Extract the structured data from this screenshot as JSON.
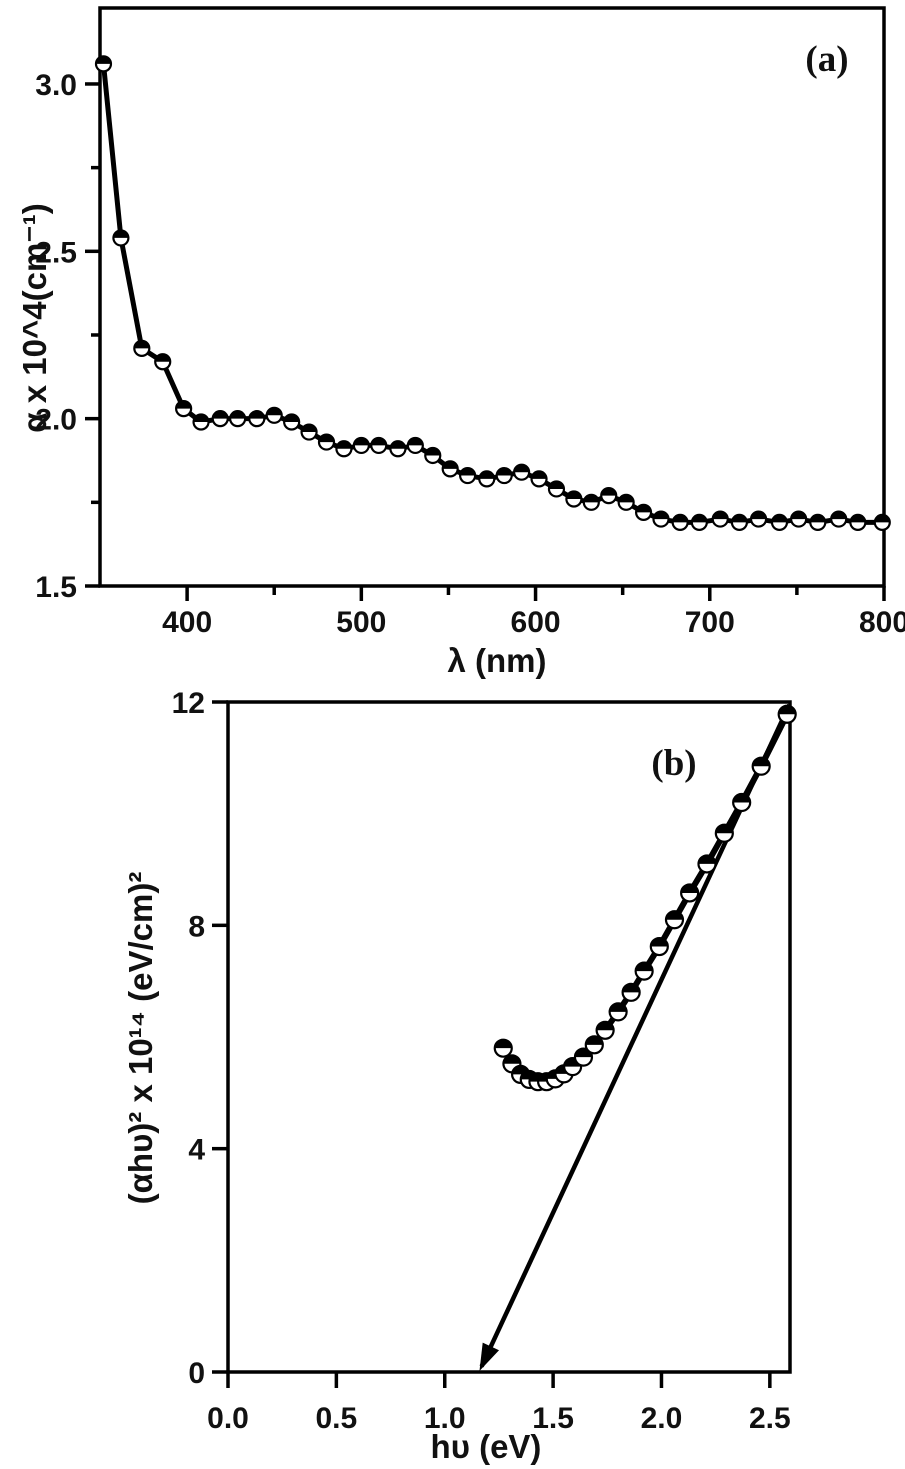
{
  "figure": {
    "background": "#ffffff",
    "colors": {
      "line": "#000000",
      "marker_fill": "#ffffff",
      "text": "#111111"
    },
    "marker_style": "half-filled-circle-top-black"
  },
  "chart_data": [
    {
      "type": "line",
      "name": "absorption-spectrum",
      "panel_label": "(a)",
      "xlabel": "λ (nm)",
      "ylabel": "α x 10^4(cm⁻¹)",
      "xlim": [
        350,
        800
      ],
      "ylim": [
        1.5,
        3.227
      ],
      "xticks": [
        400,
        500,
        600,
        700,
        800
      ],
      "xtick_labels": [
        "400",
        "500",
        "600",
        "700",
        "800"
      ],
      "xticks_minor": [
        450,
        550,
        650,
        750
      ],
      "yticks": [
        1.5,
        2.0,
        2.5,
        3.0
      ],
      "ytick_labels": [
        "1.5",
        "2.0",
        "2.5",
        "3.0"
      ],
      "yticks_minor": [
        1.75,
        2.25,
        2.75
      ],
      "grid": false,
      "legend": "none",
      "series": [
        {
          "name": "alpha-vs-wavelength",
          "marker": "half-filled-circle",
          "x": [
            352,
            362,
            374,
            386,
            398,
            408,
            419,
            429,
            440,
            450,
            460,
            470,
            480,
            490,
            500,
            510,
            521,
            531,
            541,
            551,
            561,
            572,
            582,
            592,
            602,
            612,
            622,
            632,
            642,
            652,
            662,
            672,
            683,
            694,
            706,
            717,
            728,
            740,
            751,
            762,
            774,
            785,
            799
          ],
          "y": [
            3.06,
            2.54,
            2.21,
            2.17,
            2.03,
            1.99,
            2.0,
            2.0,
            2.0,
            2.01,
            1.99,
            1.96,
            1.93,
            1.91,
            1.92,
            1.92,
            1.91,
            1.92,
            1.89,
            1.85,
            1.83,
            1.82,
            1.83,
            1.84,
            1.82,
            1.79,
            1.76,
            1.75,
            1.77,
            1.75,
            1.72,
            1.7,
            1.69,
            1.69,
            1.7,
            1.69,
            1.7,
            1.69,
            1.7,
            1.69,
            1.7,
            1.69,
            1.69
          ]
        }
      ]
    },
    {
      "type": "line",
      "name": "tauc-plot",
      "panel_label": "(b)",
      "xlabel": "hυ (eV)",
      "ylabel": "(αhυ)² x 10¹⁴ (eV/cm)²",
      "xlim": [
        0,
        2.593
      ],
      "ylim": [
        0,
        12
      ],
      "xticks": [
        0.0,
        0.5,
        1.0,
        1.5,
        2.0,
        2.5
      ],
      "xtick_labels": [
        "0.0",
        "0.5",
        "1.0",
        "1.5",
        "2.0",
        "2.5"
      ],
      "xticks_minor": [],
      "yticks": [
        0,
        4,
        8,
        12
      ],
      "ytick_labels": [
        "0",
        "4",
        "8",
        "12"
      ],
      "yticks_minor": [],
      "grid": false,
      "legend": "none",
      "series": [
        {
          "name": "alpha-hv-squared",
          "marker": "half-filled-circle",
          "x": [
            1.27,
            1.31,
            1.35,
            1.39,
            1.43,
            1.47,
            1.51,
            1.55,
            1.59,
            1.64,
            1.69,
            1.74,
            1.8,
            1.86,
            1.92,
            1.99,
            2.06,
            2.13,
            2.21,
            2.29,
            2.37,
            2.46,
            2.58
          ],
          "y": [
            5.8,
            5.52,
            5.33,
            5.24,
            5.2,
            5.2,
            5.25,
            5.34,
            5.47,
            5.64,
            5.86,
            6.12,
            6.45,
            6.8,
            7.18,
            7.62,
            8.1,
            8.58,
            9.1,
            9.65,
            10.2,
            10.85,
            11.78
          ]
        }
      ],
      "fit_line": {
        "name": "band-gap-extrapolation",
        "x": [
          2.59,
          1.17
        ],
        "y": [
          11.95,
          0.1
        ],
        "arrow": "end",
        "x_intercept_eV": 1.17
      }
    }
  ]
}
